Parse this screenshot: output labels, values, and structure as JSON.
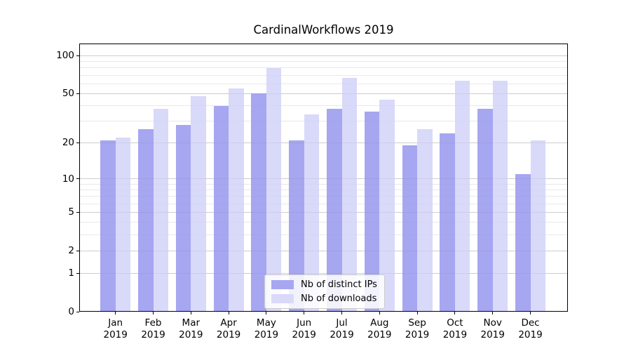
{
  "chart_data": {
    "type": "bar",
    "title": "CardinalWorkflows 2019",
    "year": "2019",
    "categories": [
      "Jan",
      "Feb",
      "Mar",
      "Apr",
      "May",
      "Jun",
      "Jul",
      "Aug",
      "Sep",
      "Oct",
      "Nov",
      "Dec"
    ],
    "series": [
      {
        "name": "Nb of distinct IPs",
        "color": "#a6a6f1",
        "values": [
          21,
          26,
          28,
          40,
          50,
          21,
          38,
          36,
          19,
          24,
          38,
          11
        ]
      },
      {
        "name": "Nb of downloads",
        "color": "#d9d9f9",
        "values": [
          22,
          38,
          48,
          55,
          80,
          34,
          67,
          45,
          26,
          63,
          63,
          21
        ]
      }
    ],
    "xlabel": "",
    "ylabel": "",
    "y_axis": {
      "scale": "log10(value+1)",
      "tick_labels": [
        100,
        50,
        20,
        10,
        5,
        2,
        1,
        0
      ],
      "minor_gridlines": [
        3,
        4,
        6,
        7,
        8,
        9,
        30,
        40,
        60,
        70,
        80,
        90
      ],
      "ylim": [
        0,
        125
      ],
      "grid": true
    },
    "legend": {
      "position": "lower center"
    }
  },
  "colors": {
    "background": "#ffffff",
    "axis": "#000000",
    "text": "#000000",
    "major_grid": "#d9d9d9",
    "minor_grid": "#efefef",
    "legend_border": "#cccccc"
  }
}
